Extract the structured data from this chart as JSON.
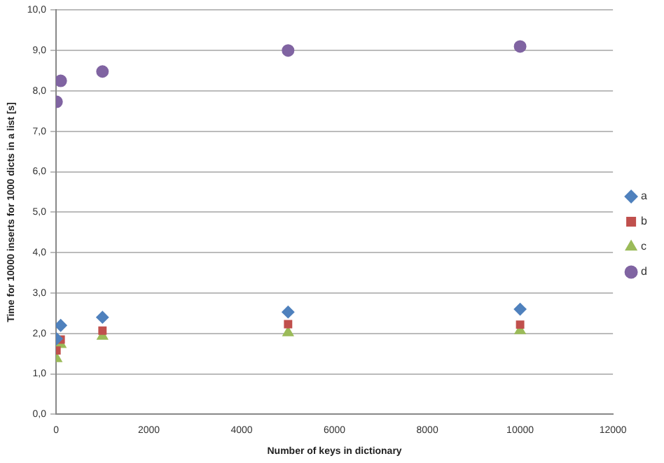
{
  "chart_data": {
    "type": "scatter",
    "xlabel": "Number of keys in dictionary",
    "ylabel": "Time for 10000 inserts for 1000 dicts in a list [s]",
    "x": [
      10,
      100,
      1000,
      5000,
      10000
    ],
    "series": [
      {
        "name": "a",
        "color": "#4f81bd",
        "marker": "diamond",
        "values": [
          1.87,
          2.2,
          2.4,
          2.53,
          2.6
        ]
      },
      {
        "name": "b",
        "color": "#c0504d",
        "marker": "square",
        "values": [
          1.58,
          1.85,
          2.07,
          2.23,
          2.22
        ]
      },
      {
        "name": "c",
        "color": "#9bbb59",
        "marker": "triangle",
        "values": [
          1.38,
          1.73,
          1.93,
          2.02,
          2.07
        ]
      },
      {
        "name": "d",
        "color": "#8064a2",
        "marker": "circle",
        "values": [
          7.73,
          8.25,
          8.48,
          9.0,
          9.1
        ]
      }
    ],
    "xlim": [
      0,
      12000
    ],
    "xticks": [
      0,
      2000,
      4000,
      6000,
      8000,
      10000,
      12000
    ],
    "ylim": [
      0,
      10
    ],
    "yticks": [
      {
        "value": 0,
        "label": "0,0"
      },
      {
        "value": 1,
        "label": "1,0"
      },
      {
        "value": 2,
        "label": "2,0"
      },
      {
        "value": 3,
        "label": "3,0"
      },
      {
        "value": 4,
        "label": "4,0"
      },
      {
        "value": 5,
        "label": "5,0"
      },
      {
        "value": 6,
        "label": "6,0"
      },
      {
        "value": 7,
        "label": "7,0"
      },
      {
        "value": 8,
        "label": "8,0"
      },
      {
        "value": 9,
        "label": "9,0"
      },
      {
        "value": 10,
        "label": "10,0"
      }
    ],
    "grid": "y",
    "legend": "right"
  }
}
